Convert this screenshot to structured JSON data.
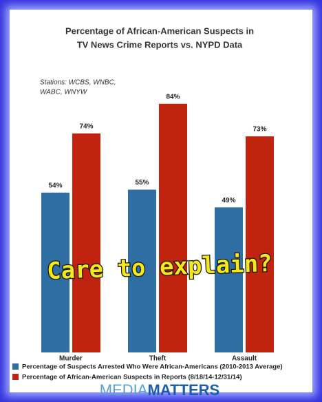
{
  "chart_data": {
    "type": "bar",
    "title": [
      "Percentage of African-American Suspects in",
      "TV News Crime Reports vs. NYPD Data"
    ],
    "note": [
      "Stations: WCBS, WNBC,",
      "WABC, WNYW"
    ],
    "categories": [
      "Murder",
      "Theft",
      "Assault"
    ],
    "series": [
      {
        "name": "Percentage of Suspects Arrested Who Were African-Americans (2010-2013 Average)",
        "color": "#2e6ea3",
        "values": [
          54,
          55,
          49
        ],
        "value_labels": [
          "54%",
          "55%",
          "49%"
        ]
      },
      {
        "name": "Percentage of African-American Suspects in Reports (8/18/14-12/31/14)",
        "color": "#c0240f",
        "values": [
          74,
          84,
          73
        ],
        "value_labels": [
          "74%",
          "84%",
          "73%"
        ]
      }
    ],
    "annotation": "Care to explain?",
    "brand": [
      "MEDIA",
      "MATTERS"
    ]
  }
}
